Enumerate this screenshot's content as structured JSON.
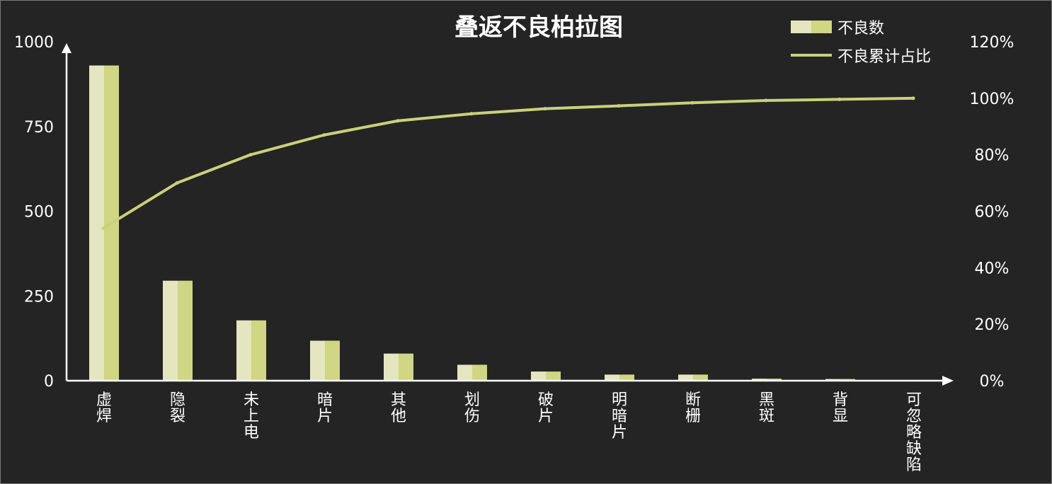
{
  "chart_data": {
    "type": "bar",
    "title": "叠返不良柏拉图",
    "categories": [
      "虚焊",
      "隐裂",
      "未上电",
      "暗片",
      "其他",
      "划伤",
      "破片",
      "明暗片",
      "断栅",
      "黑斑",
      "背显",
      "可忽略缺陷"
    ],
    "series": [
      {
        "name": "不良数",
        "type": "bar",
        "axis": "left",
        "values": [
          930,
          295,
          178,
          118,
          80,
          47,
          27,
          18,
          18,
          6,
          5,
          0
        ]
      },
      {
        "name": "不良累计占比",
        "type": "line",
        "axis": "right",
        "values": [
          54,
          70,
          80,
          87,
          92,
          94.5,
          96.3,
          97.3,
          98.4,
          99.2,
          99.6,
          100
        ]
      }
    ],
    "ylim_left": [
      0,
      1000
    ],
    "yticks_left": [
      "0",
      "250",
      "500",
      "750",
      "1000"
    ],
    "ylim_right": [
      0,
      120
    ],
    "yticks_right": [
      "0%",
      "20%",
      "40%",
      "60%",
      "80%",
      "100%",
      "120%"
    ],
    "grid": false,
    "legend_position": "top-right",
    "colors": {
      "background": "#242424",
      "bar_light": "#e3e6bf",
      "bar_dark": "#cfd684",
      "line": "#c9d17a",
      "axis": "#ffffff",
      "text": "#ffffff"
    }
  }
}
